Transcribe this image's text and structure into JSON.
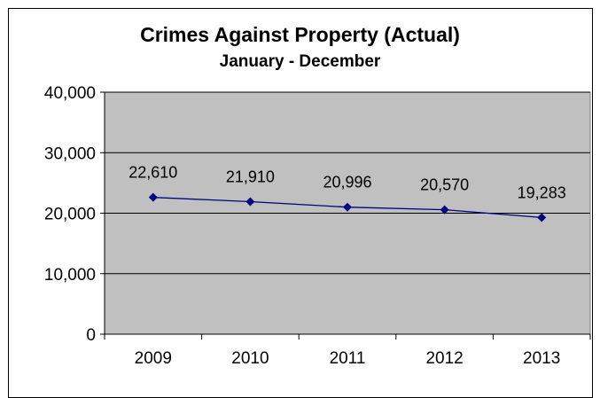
{
  "chart_data": {
    "type": "line",
    "title": "Crimes Against Property (Actual)",
    "subtitle": "January - December",
    "categories": [
      "2009",
      "2010",
      "2011",
      "2012",
      "2013"
    ],
    "series": [
      {
        "values": [
          22610,
          21910,
          20996,
          20570,
          19283
        ],
        "value_labels": [
          "22,610",
          "21,910",
          "20,996",
          "20,570",
          "19,283"
        ],
        "color": "#000080"
      }
    ],
    "ylim": [
      0,
      40000
    ],
    "yticks": [
      0,
      10000,
      20000,
      30000,
      40000
    ],
    "ytick_labels": [
      "0",
      "10,000",
      "20,000",
      "30,000",
      "40,000"
    ],
    "xlabel": "",
    "ylabel": "",
    "grid": true,
    "plot_background": "#c0c0c0",
    "marker": "diamond"
  }
}
